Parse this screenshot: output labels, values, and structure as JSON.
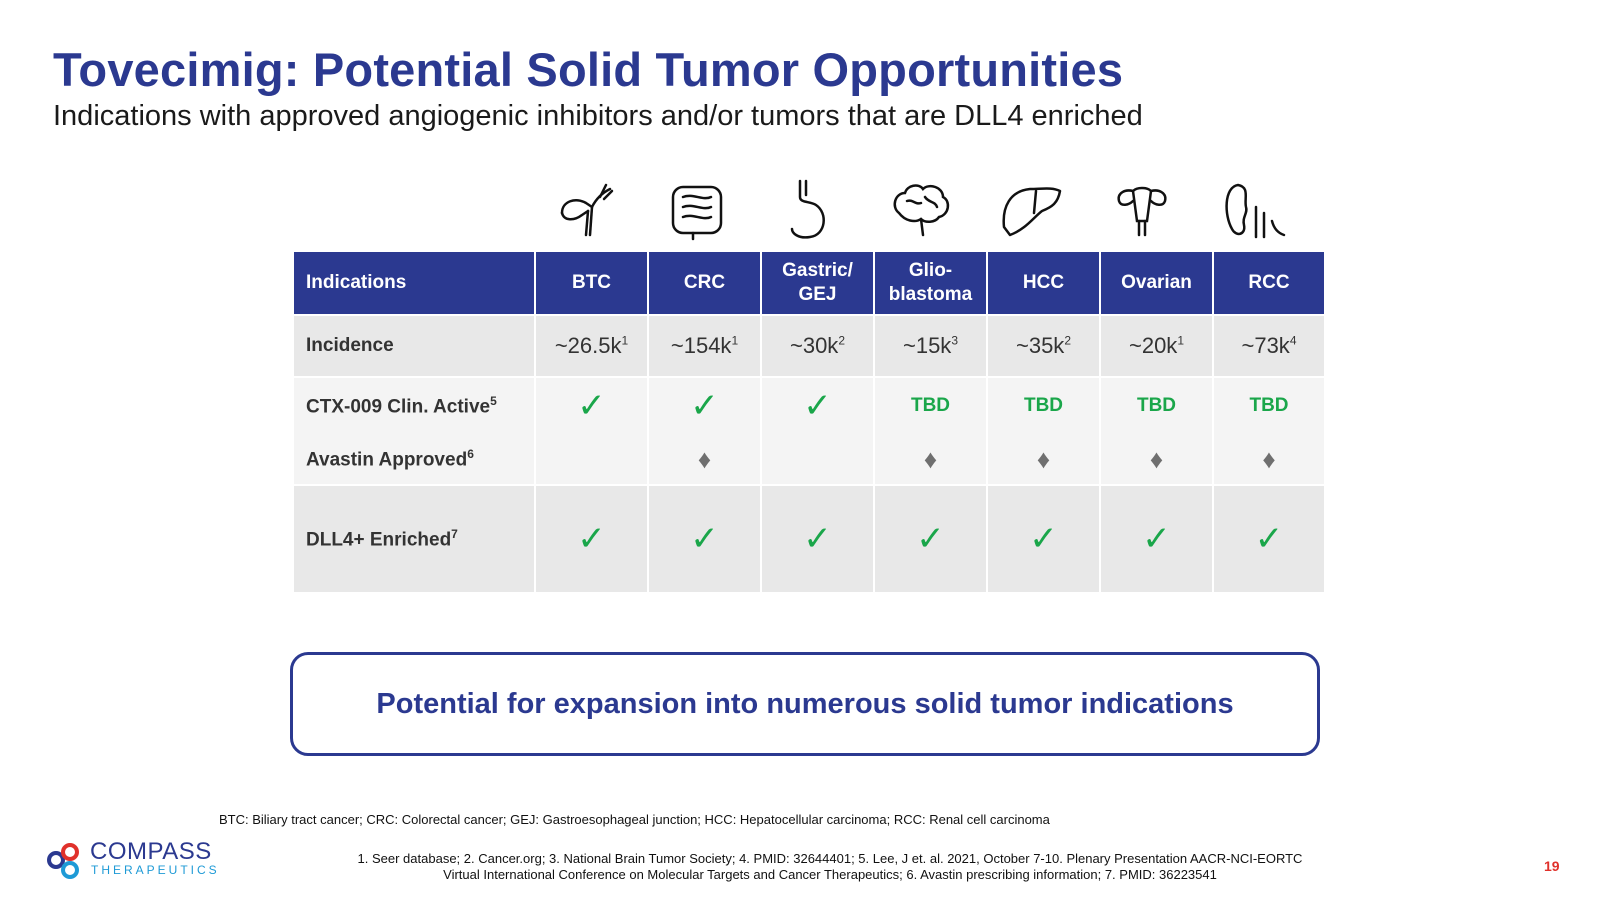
{
  "title": "Tovecimig: Potential Solid Tumor Opportunities",
  "subtitle": "Indications with approved angiogenic inhibitors and/or tumors that are DLL4 enriched",
  "icons": [
    "gallbladder-icon",
    "intestine-icon",
    "stomach-icon",
    "brain-icon",
    "liver-icon",
    "ovary-icon",
    "kidney-icon"
  ],
  "table": {
    "header_first": "Indications",
    "columns": [
      {
        "line1": "BTC",
        "line2": ""
      },
      {
        "line1": "CRC",
        "line2": ""
      },
      {
        "line1": "Gastric/",
        "line2": "GEJ"
      },
      {
        "line1": "Glio-",
        "line2": "blastoma"
      },
      {
        "line1": "HCC",
        "line2": ""
      },
      {
        "line1": "Ovarian",
        "line2": ""
      },
      {
        "line1": "RCC",
        "line2": ""
      }
    ],
    "incidence_label": "Incidence",
    "incidence": [
      {
        "value": "~26.5k",
        "ref": "1"
      },
      {
        "value": "~154k",
        "ref": "1"
      },
      {
        "value": "~30k",
        "ref": "2"
      },
      {
        "value": "~15k",
        "ref": "3"
      },
      {
        "value": "~35k",
        "ref": "2"
      },
      {
        "value": "~20k",
        "ref": "1"
      },
      {
        "value": "~73k",
        "ref": "4"
      }
    ],
    "ctx_label": "CTX-009  Clin. Active",
    "ctx_ref": "5",
    "ctx": [
      "✓",
      "✓",
      "✓",
      "TBD",
      "TBD",
      "TBD",
      "TBD"
    ],
    "avastin_label": "Avastin Approved",
    "avastin_ref": "6",
    "avastin": [
      "",
      "♦",
      "",
      "♦",
      "♦",
      "♦",
      "♦"
    ],
    "dll_label": "DLL4+ Enriched",
    "dll_ref": "7",
    "dll": [
      "✓",
      "✓",
      "✓",
      "✓",
      "✓",
      "✓",
      "✓"
    ]
  },
  "callout": "Potential for expansion into numerous solid tumor indications",
  "abbreviations": "BTC: Biliary tract cancer; CRC: Colorectal cancer; GEJ: Gastroesophageal junction; HCC: Hepatocellular carcinoma; RCC: Renal cell carcinoma",
  "references_line1": "1. Seer database;  2. Cancer.org;  3. National Brain Tumor Society;  4. PMID: 32644401;  5. Lee, J et. al. 2021, October 7-10. Plenary Presentation AACR-NCI-EORTC",
  "references_line2": "Virtual International Conference on Molecular Targets and Cancer Therapeutics;  6. Avastin prescribing information;  7. PMID: 36223541",
  "page_number": "19",
  "logo": {
    "word": "COMPASS",
    "sub": "THERAPEUTICS"
  },
  "colors": {
    "brand_blue": "#2b3990",
    "check_green": "#1aa64a",
    "accent_red": "#e0312b",
    "logo_cyan": "#1e9ad6"
  }
}
